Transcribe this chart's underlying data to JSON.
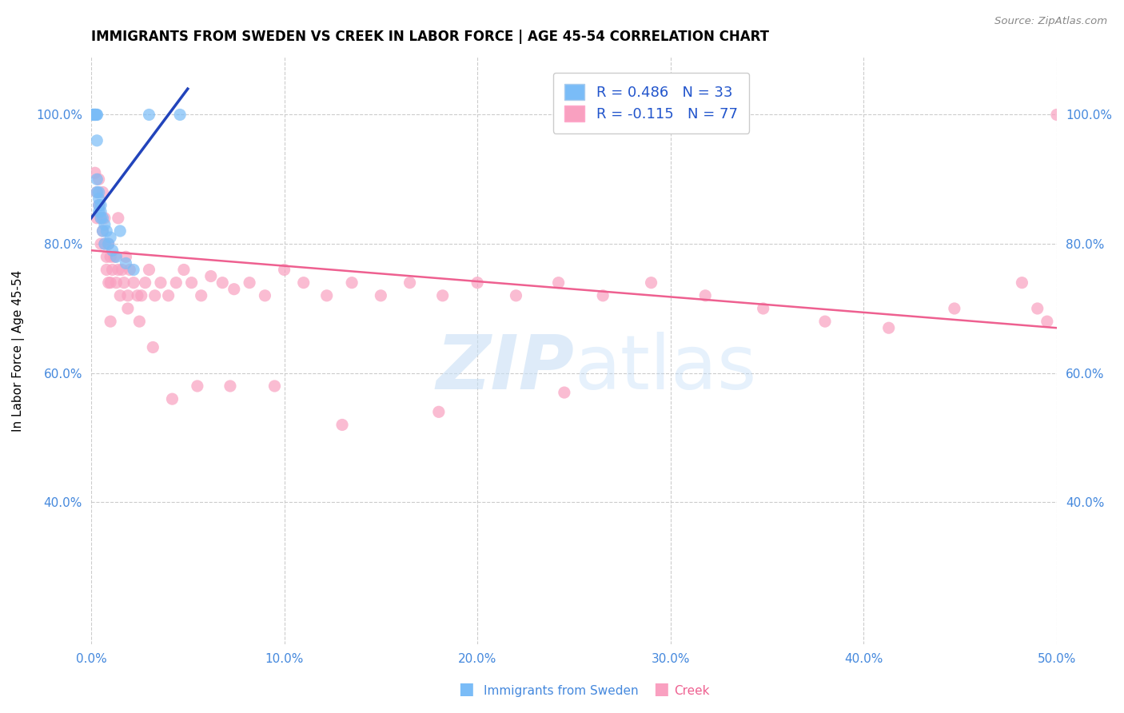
{
  "title": "IMMIGRANTS FROM SWEDEN VS CREEK IN LABOR FORCE | AGE 45-54 CORRELATION CHART",
  "source": "Source: ZipAtlas.com",
  "ylabel": "In Labor Force | Age 45-54",
  "xmin": 0.0,
  "xmax": 0.5,
  "ymin": 0.18,
  "ymax": 1.09,
  "sweden_R": 0.486,
  "sweden_N": 33,
  "creek_R": -0.115,
  "creek_N": 77,
  "sweden_color": "#7abcf7",
  "creek_color": "#f9a0c0",
  "sweden_line_color": "#2244bb",
  "creek_line_color": "#ee6090",
  "xticks": [
    0.0,
    0.1,
    0.2,
    0.3,
    0.4,
    0.5
  ],
  "xtick_labels": [
    "0.0%",
    "10.0%",
    "20.0%",
    "30.0%",
    "40.0%",
    "50.0%"
  ],
  "yticks": [
    0.4,
    0.6,
    0.8,
    1.0
  ],
  "ytick_labels": [
    "40.0%",
    "60.0%",
    "80.0%",
    "100.0%"
  ],
  "sweden_x": [
    0.001,
    0.001,
    0.001,
    0.002,
    0.002,
    0.002,
    0.002,
    0.003,
    0.003,
    0.003,
    0.003,
    0.003,
    0.004,
    0.004,
    0.004,
    0.004,
    0.005,
    0.005,
    0.005,
    0.006,
    0.006,
    0.007,
    0.007,
    0.008,
    0.009,
    0.01,
    0.011,
    0.013,
    0.015,
    0.018,
    0.022,
    0.03,
    0.046
  ],
  "sweden_y": [
    1.0,
    1.0,
    1.0,
    1.0,
    1.0,
    1.0,
    1.0,
    1.0,
    1.0,
    0.96,
    0.9,
    0.88,
    0.88,
    0.87,
    0.86,
    0.85,
    0.86,
    0.85,
    0.84,
    0.84,
    0.82,
    0.83,
    0.8,
    0.82,
    0.8,
    0.81,
    0.79,
    0.78,
    0.82,
    0.77,
    0.76,
    1.0,
    1.0
  ],
  "creek_x": [
    0.002,
    0.003,
    0.003,
    0.004,
    0.004,
    0.005,
    0.005,
    0.006,
    0.006,
    0.007,
    0.007,
    0.008,
    0.008,
    0.009,
    0.009,
    0.01,
    0.01,
    0.011,
    0.012,
    0.013,
    0.014,
    0.015,
    0.016,
    0.017,
    0.018,
    0.019,
    0.02,
    0.022,
    0.024,
    0.026,
    0.028,
    0.03,
    0.033,
    0.036,
    0.04,
    0.044,
    0.048,
    0.052,
    0.057,
    0.062,
    0.068,
    0.074,
    0.082,
    0.09,
    0.1,
    0.11,
    0.122,
    0.135,
    0.15,
    0.165,
    0.182,
    0.2,
    0.22,
    0.242,
    0.265,
    0.29,
    0.318,
    0.348,
    0.38,
    0.413,
    0.447,
    0.482,
    0.49,
    0.495,
    0.5,
    0.245,
    0.18,
    0.13,
    0.095,
    0.072,
    0.055,
    0.042,
    0.032,
    0.025,
    0.019,
    0.014,
    0.01
  ],
  "creek_y": [
    0.91,
    0.88,
    0.84,
    0.9,
    0.86,
    0.84,
    0.8,
    0.88,
    0.82,
    0.84,
    0.8,
    0.78,
    0.76,
    0.8,
    0.74,
    0.78,
    0.74,
    0.76,
    0.78,
    0.74,
    0.76,
    0.72,
    0.76,
    0.74,
    0.78,
    0.7,
    0.76,
    0.74,
    0.72,
    0.72,
    0.74,
    0.76,
    0.72,
    0.74,
    0.72,
    0.74,
    0.76,
    0.74,
    0.72,
    0.75,
    0.74,
    0.73,
    0.74,
    0.72,
    0.76,
    0.74,
    0.72,
    0.74,
    0.72,
    0.74,
    0.72,
    0.74,
    0.72,
    0.74,
    0.72,
    0.74,
    0.72,
    0.7,
    0.68,
    0.67,
    0.7,
    0.74,
    0.7,
    0.68,
    1.0,
    0.57,
    0.54,
    0.52,
    0.58,
    0.58,
    0.58,
    0.56,
    0.64,
    0.68,
    0.72,
    0.84,
    0.68
  ],
  "sweden_line_x0": 0.0,
  "sweden_line_x1": 0.05,
  "sweden_line_y0": 0.84,
  "sweden_line_y1": 1.04,
  "creek_line_x0": 0.0,
  "creek_line_x1": 0.5,
  "creek_line_y0": 0.79,
  "creek_line_y1": 0.67
}
